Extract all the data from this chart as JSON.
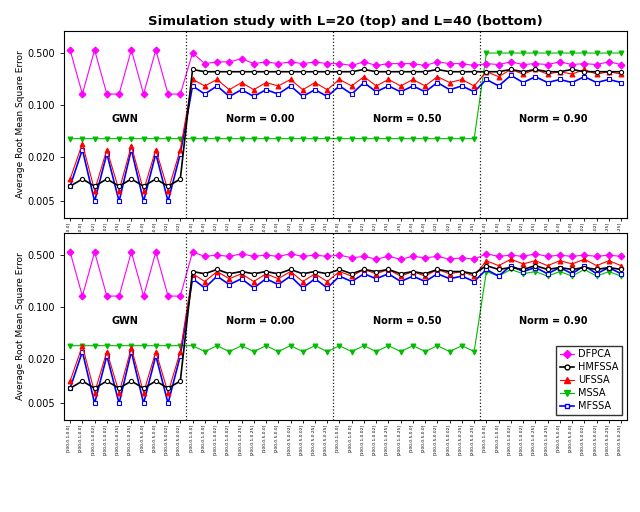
{
  "title": "Simulation study with L=20 (top) and L=40 (bottom)",
  "ylabel": "Average Root Mean Square Error",
  "colors": {
    "DFPCA": "#FF00FF",
    "HMFSSA": "#000000",
    "UFSSA": "#FF0000",
    "MSSA": "#00BB00",
    "MFSSA": "#0000FF"
  },
  "markers": {
    "DFPCA": "D",
    "HMFSSA": "o",
    "UFSSA": "^",
    "MSSA": "v",
    "MFSSA": "s"
  },
  "yticks": [
    0.005,
    0.02,
    0.1,
    0.5
  ],
  "ytick_labels": [
    "0.005",
    "0.020",
    "0.100",
    "0.500"
  ],
  "vline_positions": [
    10,
    22,
    34
  ],
  "n_points": 46
}
